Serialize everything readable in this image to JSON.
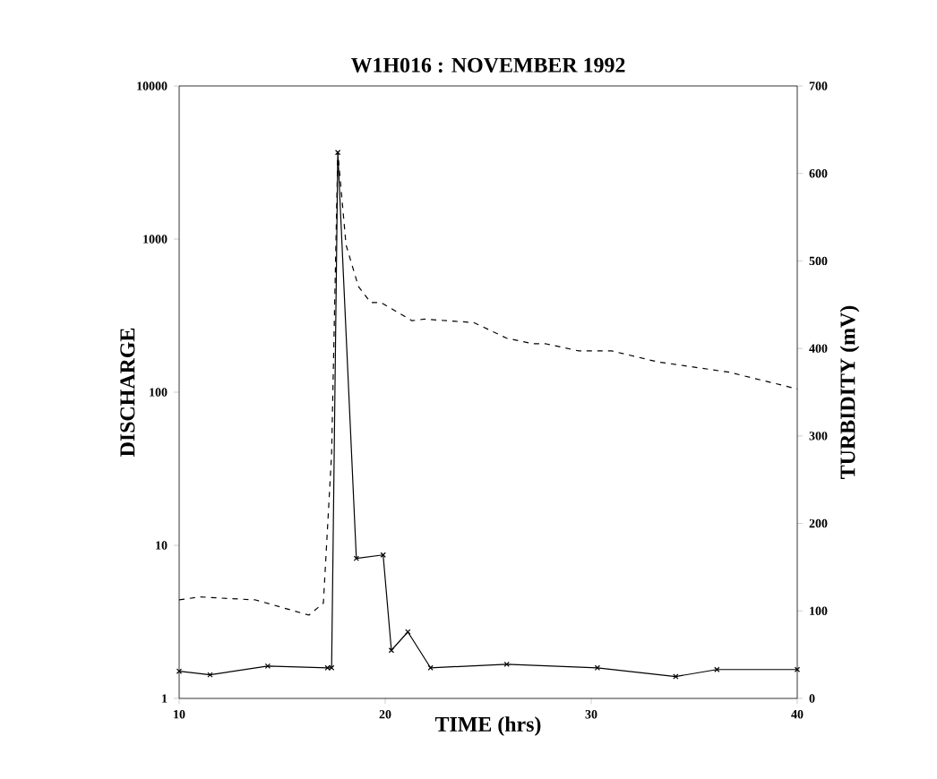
{
  "chart_data": {
    "type": "line",
    "title": "W1H016 : NOVEMBER 1992",
    "xlabel": "TIME (hrs)",
    "ylabel": "DISCHARGE",
    "y2label": "TURBIDITY (mV)",
    "log": "y",
    "xlim": [
      10,
      40
    ],
    "xticks": [
      10,
      20,
      30,
      40
    ],
    "ylim": [
      1,
      10000
    ],
    "yticks": [
      1,
      10,
      100,
      1000,
      10000
    ],
    "y2lim": [
      0,
      700
    ],
    "y2ticks": [
      0,
      100,
      200,
      300,
      400,
      500,
      600,
      700
    ],
    "series": [
      {
        "color": "#000000",
        "line_style": "dashed",
        "x": [
          10,
          11,
          13.7,
          16.3,
          17,
          17.4,
          17.7,
          18.1,
          18.7,
          19.3,
          19.8,
          21.3,
          21.9,
          24.3,
          25.9,
          27.2,
          27.8,
          29.4,
          31,
          33.2,
          36.7,
          40
        ],
        "values": [
          4.4,
          4.6,
          4.4,
          3.5,
          4.2,
          40,
          3700,
          915,
          490,
          385,
          385,
          293,
          300,
          285,
          225,
          207,
          207,
          186,
          186,
          158,
          135,
          105
        ]
      },
      {
        "color": "#000000",
        "axis": "y2",
        "marker": "cross",
        "x": [
          10,
          11.5,
          14.3,
          17.2,
          17.4,
          17.7,
          18.6,
          19.9,
          20.3,
          21.1,
          22.2,
          25.9,
          30.3,
          34.1,
          36.1,
          40
        ],
        "values": [
          31,
          27,
          37,
          35,
          35,
          624,
          160,
          164,
          55,
          76,
          35,
          39,
          35,
          25,
          33,
          33
        ]
      }
    ]
  }
}
